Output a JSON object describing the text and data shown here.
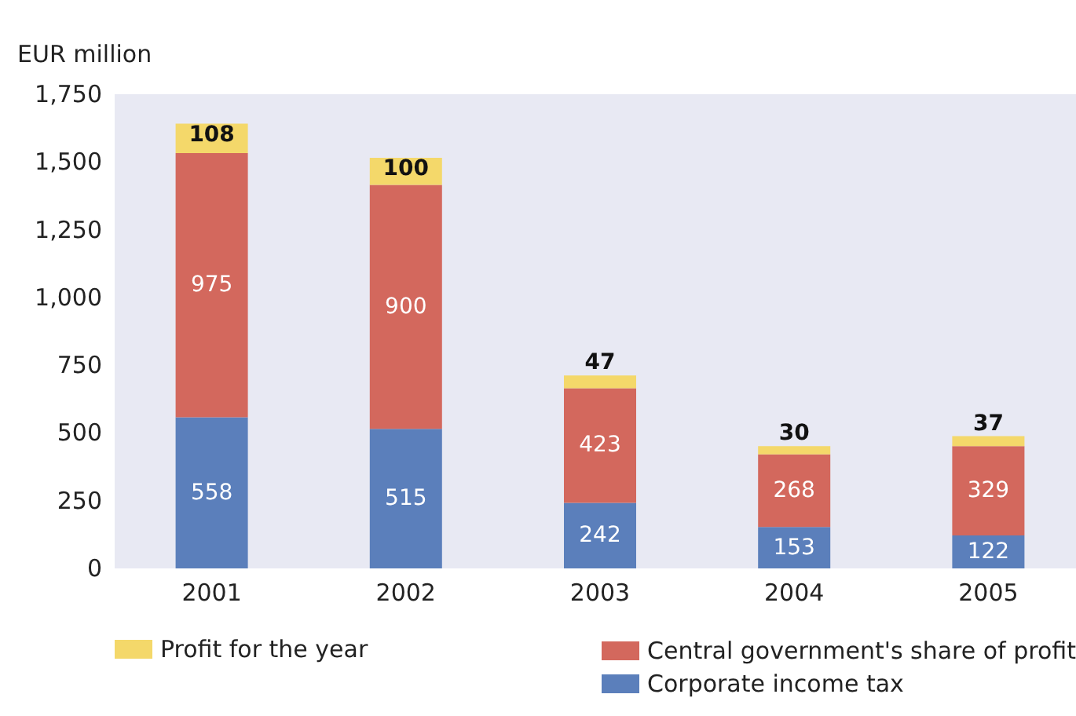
{
  "chart_data": {
    "type": "bar",
    "ylabel": "EUR million",
    "categories": [
      "2001",
      "2002",
      "2003",
      "2004",
      "2005"
    ],
    "stacked": true,
    "data_labels": true,
    "legend": "bottom",
    "grid": false,
    "ylim": [
      0,
      1750
    ],
    "yticks": [
      0,
      250,
      500,
      750,
      {
        "value": 1000,
        "label": "1,000"
      },
      {
        "value": 1250,
        "label": "1,250"
      },
      {
        "value": 1500,
        "label": "1,500"
      },
      {
        "value": 1750,
        "label": "1,750"
      }
    ],
    "series": [
      {
        "name": "Corporate income tax",
        "color": "#5b7fbb",
        "values": [
          558,
          515,
          242,
          153,
          122
        ]
      },
      {
        "name": "Central government's share of profit",
        "color": "#d3685d",
        "values": [
          975,
          900,
          423,
          268,
          329
        ]
      },
      {
        "name": "Profit for the year",
        "color": "#f4d86a",
        "values": [
          108,
          100,
          47,
          30,
          37
        ]
      }
    ]
  }
}
